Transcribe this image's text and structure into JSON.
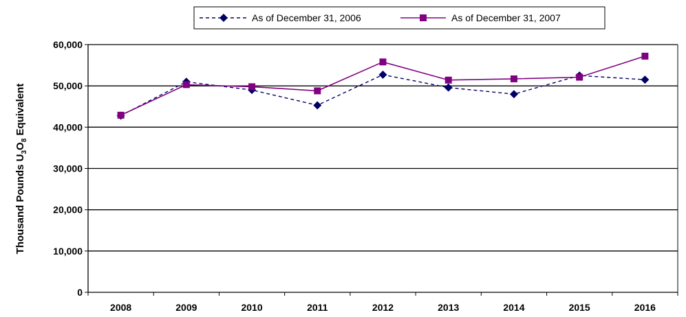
{
  "chart_data": {
    "type": "line",
    "title": "",
    "xlabel": "",
    "ylabel": "Thousand Pounds U3O8 Equivalent",
    "ylabel_parts": {
      "before": "Thousand Pounds U",
      "sub1": "3",
      "mid": "O",
      "sub2": "8",
      "after": " Equivalent"
    },
    "x": [
      "2008",
      "2009",
      "2010",
      "2011",
      "2012",
      "2013",
      "2014",
      "2015",
      "2016"
    ],
    "ylim": [
      0,
      60000
    ],
    "yticks": [
      0,
      10000,
      20000,
      30000,
      40000,
      50000,
      60000
    ],
    "ytick_labels": [
      "0",
      "10,000",
      "20,000",
      "30,000",
      "40,000",
      "50,000",
      "60,000"
    ],
    "grid": true,
    "legend_position": "top-center",
    "series": [
      {
        "name": "As of December 31, 2006",
        "color": "#000066",
        "line_style": "dashed",
        "marker": "diamond",
        "values": [
          42800,
          51000,
          49000,
          45300,
          52700,
          49600,
          48000,
          52500,
          51500
        ]
      },
      {
        "name": "As of December 31, 2007",
        "color": "#800080",
        "line_style": "solid",
        "marker": "square",
        "values": [
          42900,
          50300,
          49800,
          48800,
          55800,
          51400,
          51700,
          52100,
          57200
        ]
      }
    ]
  }
}
